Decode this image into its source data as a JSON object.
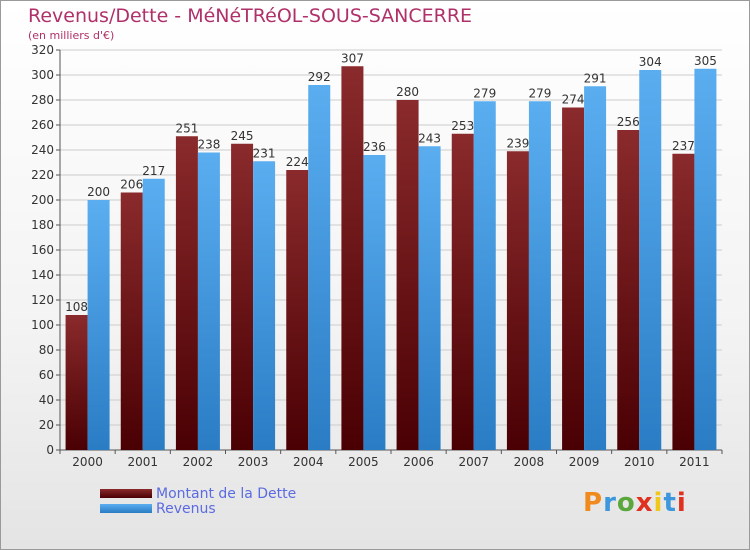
{
  "title": "Revenus/Dette - MéNéTRéOL-SOUS-SANCERRE",
  "subtitle": "(en milliers d'€)",
  "logo_text": "Proxiti",
  "colors": {
    "dette": "#6b0f14",
    "revenus": "#3d97dd",
    "title": "#b0306a",
    "legend_text": "#5b6be0"
  },
  "chart_data": {
    "type": "bar",
    "categories": [
      "2000",
      "2001",
      "2002",
      "2003",
      "2004",
      "2005",
      "2006",
      "2007",
      "2008",
      "2009",
      "2010",
      "2011"
    ],
    "series": [
      {
        "name": "Montant de la Dette",
        "values": [
          108,
          206,
          251,
          245,
          224,
          307,
          280,
          253,
          239,
          274,
          256,
          237
        ]
      },
      {
        "name": "Revenus",
        "values": [
          200,
          217,
          238,
          231,
          292,
          236,
          243,
          279,
          279,
          291,
          304,
          305
        ]
      }
    ],
    "ylim": [
      0,
      320
    ],
    "yticks": [
      0,
      20,
      40,
      60,
      80,
      100,
      120,
      140,
      160,
      180,
      200,
      220,
      240,
      260,
      280,
      300,
      320
    ],
    "grid": true,
    "legend_position": "bottom-left"
  }
}
